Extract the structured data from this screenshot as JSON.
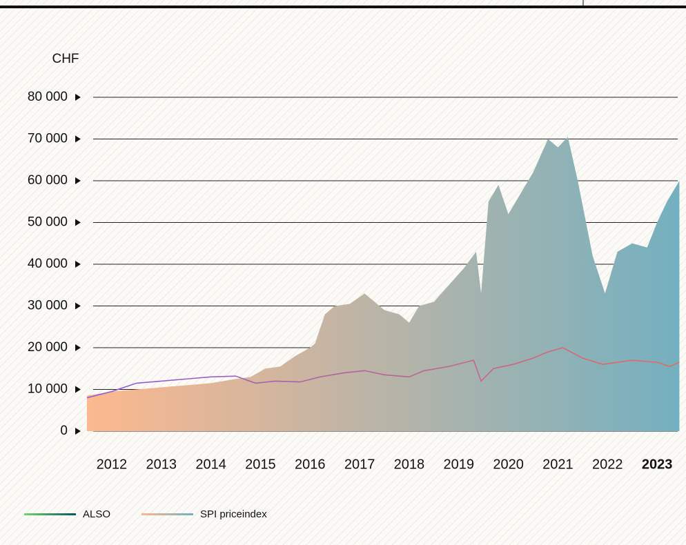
{
  "chart_data": {
    "type": "area",
    "y_label": "CHF",
    "xlim": [
      2012,
      2024
    ],
    "xticks": [
      {
        "value": 2012.5,
        "label": "2012"
      },
      {
        "value": 2013.5,
        "label": "2013"
      },
      {
        "value": 2014.5,
        "label": "2014"
      },
      {
        "value": 2015.5,
        "label": "2015"
      },
      {
        "value": 2016.5,
        "label": "2016"
      },
      {
        "value": 2017.5,
        "label": "2017"
      },
      {
        "value": 2018.5,
        "label": "2018"
      },
      {
        "value": 2019.5,
        "label": "2019"
      },
      {
        "value": 2020.5,
        "label": "2020"
      },
      {
        "value": 2021.5,
        "label": "2021"
      },
      {
        "value": 2022.5,
        "label": "2022"
      },
      {
        "value": 2023.5,
        "label": "2023"
      }
    ],
    "bold_xtick_index": 11,
    "ylim": [
      0,
      80000
    ],
    "yticks": [
      {
        "value": 0,
        "label": "0"
      },
      {
        "value": 10000,
        "label": "10 000"
      },
      {
        "value": 20000,
        "label": "20 000"
      },
      {
        "value": 30000,
        "label": "30 000"
      },
      {
        "value": 40000,
        "label": "40 000"
      },
      {
        "value": 50000,
        "label": "50 000"
      },
      {
        "value": 60000,
        "label": "60 000"
      },
      {
        "value": 70000,
        "label": "70 000"
      },
      {
        "value": 80000,
        "label": "80 000"
      }
    ],
    "grid": true,
    "series": [
      {
        "name": "ALSO",
        "kind": "line",
        "color": [
          "#72d66a",
          "#0a5566"
        ],
        "stroke": [
          "#8a5cd6",
          "#e56b5b"
        ],
        "x": [
          2012.0,
          2012.5,
          2013.0,
          2013.5,
          2014.0,
          2014.5,
          2015.0,
          2015.4,
          2015.8,
          2016.3,
          2016.7,
          2017.2,
          2017.6,
          2018.0,
          2018.5,
          2018.8,
          2019.3,
          2019.8,
          2019.95,
          2020.2,
          2020.6,
          2021.0,
          2021.3,
          2021.6,
          2022.0,
          2022.4,
          2022.7,
          2023.0,
          2023.5,
          2023.75,
          2023.95
        ],
        "values": [
          8000,
          9500,
          11500,
          12000,
          12500,
          13000,
          13200,
          11500,
          12000,
          11800,
          13000,
          14000,
          14500,
          13500,
          13000,
          14500,
          15500,
          17000,
          12000,
          15000,
          16000,
          17500,
          19000,
          20000,
          17500,
          16000,
          16500,
          17000,
          16500,
          15500,
          16500
        ]
      },
      {
        "name": "SPI priceindex",
        "kind": "area",
        "color": [
          "#fdb88e",
          "#74b0c0"
        ],
        "stroke": [
          "#fdb88e",
          "#74b0c0"
        ],
        "x": [
          2012.0,
          2012.5,
          2013.0,
          2013.5,
          2014.0,
          2014.5,
          2015.0,
          2015.3,
          2015.6,
          2015.9,
          2016.2,
          2016.5,
          2016.6,
          2016.8,
          2017.0,
          2017.3,
          2017.6,
          2017.8,
          2018.0,
          2018.3,
          2018.5,
          2018.7,
          2019.0,
          2019.3,
          2019.6,
          2019.85,
          2019.95,
          2020.1,
          2020.3,
          2020.5,
          2020.7,
          2021.0,
          2021.3,
          2021.5,
          2021.7,
          2021.9,
          2022.2,
          2022.45,
          2022.7,
          2023.0,
          2023.3,
          2023.5,
          2023.7,
          2023.95
        ],
        "values": [
          8500,
          9500,
          10000,
          10500,
          11000,
          11500,
          12500,
          13000,
          15000,
          15500,
          18000,
          20000,
          21000,
          28000,
          30000,
          30500,
          33000,
          31000,
          29000,
          28000,
          26000,
          30000,
          31000,
          35000,
          39000,
          43000,
          33000,
          55000,
          59000,
          52000,
          56000,
          62000,
          70000,
          68000,
          70500,
          60000,
          42000,
          33000,
          43000,
          45000,
          44000,
          50000,
          55000,
          60000
        ]
      }
    ]
  }
}
